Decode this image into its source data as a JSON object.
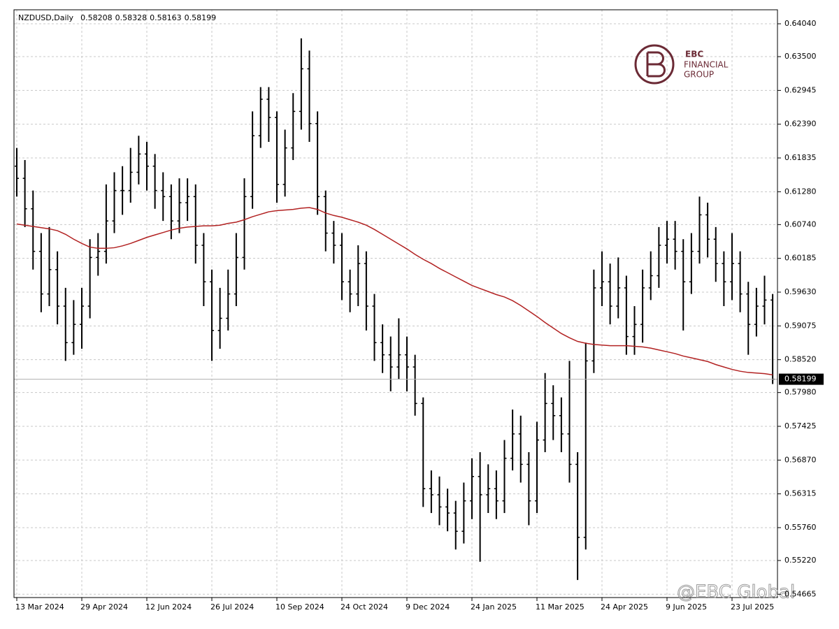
{
  "chart_data": {
    "type": "ohlc",
    "title": "NZDUSD,Daily",
    "header_values": [
      0.58208,
      0.58328,
      0.58163,
      0.58199
    ],
    "logo_text": [
      "EBC",
      "FINANCIAL",
      "GROUP"
    ],
    "watermark": "@EBC Global",
    "color": "#000000",
    "ma_color": "#b22222",
    "grid": true,
    "ylim": [
      0.54611,
      0.6427
    ],
    "yticks": [
      {
        "value": 0.6404,
        "label": "0.64040"
      },
      {
        "value": 0.635,
        "label": "0.63500"
      },
      {
        "value": 0.62945,
        "label": "0.62945"
      },
      {
        "value": 0.6239,
        "label": "0.62390"
      },
      {
        "value": 0.61835,
        "label": "0.61835"
      },
      {
        "value": 0.6128,
        "label": "0.61280"
      },
      {
        "value": 0.6074,
        "label": "0.60740"
      },
      {
        "value": 0.60185,
        "label": "0.60185"
      },
      {
        "value": 0.5963,
        "label": "0.59630"
      },
      {
        "value": 0.59075,
        "label": "0.59075"
      },
      {
        "value": 0.5852,
        "label": "0.58520"
      },
      {
        "value": 0.5798,
        "label": "0.57980"
      },
      {
        "value": 0.57425,
        "label": "0.57425"
      },
      {
        "value": 0.5687,
        "label": "0.56870"
      },
      {
        "value": 0.56315,
        "label": "0.56315"
      },
      {
        "value": 0.5576,
        "label": "0.55760"
      },
      {
        "value": 0.5522,
        "label": "0.55220"
      },
      {
        "value": 0.54665,
        "label": "0.54665"
      }
    ],
    "categories": [
      "13 Mar 2024",
      null,
      null,
      null,
      null,
      null,
      null,
      null,
      "29 Apr 2024",
      null,
      null,
      null,
      null,
      null,
      null,
      null,
      "12 Jun 2024",
      null,
      null,
      null,
      null,
      null,
      null,
      null,
      "26 Jul 2024",
      null,
      null,
      null,
      null,
      null,
      null,
      null,
      "10 Sep 2024",
      null,
      null,
      null,
      null,
      null,
      null,
      null,
      "24 Oct 2024",
      null,
      null,
      null,
      null,
      null,
      null,
      null,
      "9 Dec 2024",
      null,
      null,
      null,
      null,
      null,
      null,
      null,
      "24 Jan 2025",
      null,
      null,
      null,
      null,
      null,
      null,
      null,
      "11 Mar 2025",
      null,
      null,
      null,
      null,
      null,
      null,
      null,
      "24 Apr 2025",
      null,
      null,
      null,
      null,
      null,
      null,
      null,
      "9 Jun 2025",
      null,
      null,
      null,
      null,
      null,
      null,
      null,
      "23 Jul 2025",
      null,
      null,
      null,
      null,
      null
    ],
    "open": [
      0.617,
      0.615,
      0.61,
      0.603,
      0.596,
      0.6,
      0.594,
      0.588,
      0.591,
      0.594,
      0.602,
      0.603,
      0.608,
      0.613,
      0.613,
      0.616,
      0.619,
      0.617,
      0.613,
      0.612,
      0.608,
      0.611,
      0.612,
      0.604,
      0.598,
      0.59,
      0.592,
      0.596,
      0.602,
      0.612,
      0.622,
      0.628,
      0.625,
      0.614,
      0.62,
      0.626,
      0.633,
      0.624,
      0.612,
      0.606,
      0.604,
      0.598,
      0.596,
      0.601,
      0.594,
      0.588,
      0.586,
      0.584,
      0.586,
      0.584,
      0.578,
      0.564,
      0.563,
      0.561,
      0.56,
      0.557,
      0.562,
      0.566,
      0.563,
      0.564,
      0.562,
      0.569,
      0.573,
      0.568,
      0.562,
      0.572,
      0.578,
      0.576,
      0.573,
      0.568,
      0.556,
      0.585,
      0.597,
      0.598,
      0.594,
      0.597,
      0.589,
      0.591,
      0.597,
      0.599,
      0.604,
      0.605,
      0.603,
      0.598,
      0.603,
      0.609,
      0.605,
      0.601,
      0.598,
      0.601,
      0.596,
      0.591,
      0.594,
      0.595
    ],
    "high": [
      0.62,
      0.618,
      0.613,
      0.606,
      0.607,
      0.603,
      0.597,
      0.595,
      0.597,
      0.605,
      0.606,
      0.614,
      0.616,
      0.617,
      0.62,
      0.622,
      0.621,
      0.619,
      0.616,
      0.614,
      0.615,
      0.615,
      0.614,
      0.606,
      0.6,
      0.597,
      0.6,
      0.606,
      0.615,
      0.626,
      0.63,
      0.63,
      0.626,
      0.623,
      0.629,
      0.638,
      0.636,
      0.626,
      0.613,
      0.608,
      0.606,
      0.6,
      0.604,
      0.603,
      0.596,
      0.591,
      0.589,
      0.592,
      0.589,
      0.586,
      0.579,
      0.567,
      0.566,
      0.564,
      0.562,
      0.565,
      0.569,
      0.57,
      0.568,
      0.567,
      0.572,
      0.577,
      0.576,
      0.57,
      0.575,
      0.583,
      0.581,
      0.579,
      0.585,
      0.57,
      0.588,
      0.6,
      0.603,
      0.601,
      0.602,
      0.599,
      0.594,
      0.6,
      0.603,
      0.607,
      0.608,
      0.608,
      0.605,
      0.606,
      0.612,
      0.611,
      0.607,
      0.603,
      0.606,
      0.603,
      0.598,
      0.597,
      0.599,
      0.596
    ],
    "low": [
      0.612,
      0.607,
      0.6,
      0.593,
      0.594,
      0.591,
      0.585,
      0.586,
      0.587,
      0.592,
      0.599,
      0.601,
      0.606,
      0.609,
      0.611,
      0.614,
      0.613,
      0.61,
      0.608,
      0.605,
      0.606,
      0.608,
      0.601,
      0.594,
      0.585,
      0.587,
      0.59,
      0.594,
      0.6,
      0.61,
      0.62,
      0.621,
      0.611,
      0.612,
      0.618,
      0.623,
      0.621,
      0.609,
      0.603,
      0.601,
      0.595,
      0.593,
      0.594,
      0.59,
      0.585,
      0.583,
      0.58,
      0.582,
      0.58,
      0.576,
      0.561,
      0.56,
      0.558,
      0.557,
      0.554,
      0.555,
      0.559,
      0.552,
      0.56,
      0.559,
      0.56,
      0.567,
      0.565,
      0.558,
      0.56,
      0.57,
      0.572,
      0.57,
      0.565,
      0.549,
      0.554,
      0.583,
      0.594,
      0.591,
      0.592,
      0.586,
      0.586,
      0.588,
      0.595,
      0.597,
      0.601,
      0.6,
      0.59,
      0.596,
      0.601,
      0.602,
      0.598,
      0.594,
      0.595,
      0.593,
      0.586,
      0.589,
      0.591,
      0.5812
    ],
    "close": [
      0.615,
      0.61,
      0.603,
      0.596,
      0.6,
      0.594,
      0.588,
      0.591,
      0.594,
      0.602,
      0.603,
      0.608,
      0.613,
      0.613,
      0.616,
      0.619,
      0.617,
      0.613,
      0.612,
      0.608,
      0.611,
      0.612,
      0.604,
      0.598,
      0.59,
      0.592,
      0.596,
      0.602,
      0.612,
      0.622,
      0.628,
      0.625,
      0.614,
      0.62,
      0.626,
      0.633,
      0.624,
      0.612,
      0.606,
      0.604,
      0.598,
      0.596,
      0.601,
      0.594,
      0.588,
      0.586,
      0.584,
      0.586,
      0.584,
      0.578,
      0.564,
      0.563,
      0.561,
      0.56,
      0.557,
      0.562,
      0.566,
      0.563,
      0.564,
      0.562,
      0.569,
      0.573,
      0.568,
      0.562,
      0.572,
      0.578,
      0.576,
      0.573,
      0.568,
      0.556,
      0.585,
      0.597,
      0.598,
      0.594,
      0.597,
      0.589,
      0.591,
      0.597,
      0.599,
      0.604,
      0.605,
      0.603,
      0.598,
      0.603,
      0.609,
      0.605,
      0.601,
      0.598,
      0.601,
      0.596,
      0.591,
      0.594,
      0.595,
      0.58199
    ],
    "ma": [
      0.6075,
      0.6073,
      0.6071,
      0.6069,
      0.6067,
      0.6064,
      0.6058,
      0.605,
      0.6043,
      0.6037,
      0.6035,
      0.6035,
      0.6036,
      0.6039,
      0.6043,
      0.6048,
      0.6053,
      0.6057,
      0.6061,
      0.6065,
      0.6068,
      0.607,
      0.6071,
      0.6072,
      0.6072,
      0.6073,
      0.6076,
      0.6078,
      0.6082,
      0.6087,
      0.6091,
      0.6095,
      0.6097,
      0.6098,
      0.6099,
      0.6101,
      0.6102,
      0.6099,
      0.6093,
      0.6089,
      0.6086,
      0.6082,
      0.6078,
      0.6073,
      0.6066,
      0.6058,
      0.605,
      0.6042,
      0.6034,
      0.6025,
      0.6017,
      0.601,
      0.6002,
      0.5995,
      0.5988,
      0.5981,
      0.5974,
      0.5969,
      0.5964,
      0.5959,
      0.5955,
      0.5949,
      0.5941,
      0.5932,
      0.5923,
      0.5913,
      0.5904,
      0.5895,
      0.5888,
      0.5882,
      0.5879,
      0.5877,
      0.5876,
      0.5875,
      0.5875,
      0.5875,
      0.5874,
      0.5873,
      0.5871,
      0.5868,
      0.5865,
      0.5862,
      0.5858,
      0.5855,
      0.5852,
      0.5849,
      0.5844,
      0.584,
      0.5836,
      0.5833,
      0.5831,
      0.583,
      0.5829,
      0.5827
    ]
  }
}
